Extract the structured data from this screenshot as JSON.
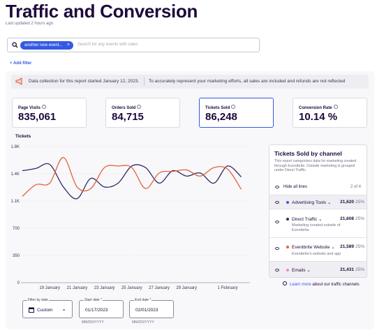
{
  "header": {
    "title": "Traffic and Conversion",
    "updated": "Last updated 2 hours ago"
  },
  "search": {
    "chip": "another new event...",
    "placeholder": "Search for any events with sales"
  },
  "add_filter": "+ Add filter",
  "banner": {
    "left": "Data collection for this report started January 12, 2023.",
    "right": "To accurately represent your marketing efforts, all sales are included and refunds are not reflected"
  },
  "metrics": [
    {
      "label": "Page Visits",
      "value": "835,061"
    },
    {
      "label": "Orders Sold",
      "value": "84,715"
    },
    {
      "label": "Tickets Sold",
      "value": "86,248",
      "selected": true
    },
    {
      "label": "Conversion Rate",
      "value": "10.14 %"
    }
  ],
  "chart_data": {
    "type": "line",
    "y_label": "Tickets",
    "categories": [
      null,
      null,
      "19 January",
      null,
      "21 January",
      null,
      "23 January",
      null,
      "25 January",
      null,
      "27 January",
      null,
      "29 January",
      null,
      null,
      "1 February",
      null
    ],
    "series": [
      {
        "color": "#2f2a66",
        "values": [
          1440,
          1470,
          1520,
          1230,
          1080,
          1340,
          1230,
          1280,
          1500,
          1480,
          1280,
          1440,
          1370,
          1410,
          1280,
          1500,
          1360
        ]
      },
      {
        "color": "#e0643a",
        "values": [
          1110,
          1260,
          1280,
          1610,
          1230,
          1210,
          1480,
          1500,
          1480,
          1210,
          1410,
          1430,
          1450,
          1370,
          1480,
          1460,
          1200
        ]
      }
    ],
    "ylim": [
      0,
      1750
    ],
    "yticks": [
      0,
      350,
      700,
      {
        "value": 1050,
        "label": "1.1K"
      },
      {
        "value": 1400,
        "label": "1.4K"
      },
      {
        "value": 1750,
        "label": "1.8K"
      }
    ],
    "grid": true
  },
  "channels_panel": {
    "title": "Tickets Sold by channel",
    "description": "This report categorizes data for marketing created through Eventbrite. Outside marketing is grouped under Direct Traffic.",
    "hide_all": "Hide all lines",
    "count": "2 of 4",
    "channels": [
      {
        "name": "Advertising Tools",
        "tickets": "21,620",
        "share": "25%",
        "color": "#3659e3",
        "selected": false
      },
      {
        "name": "Direct Traffic",
        "tickets": "21,608",
        "share": "25%",
        "note": "Marketing created outside of Eventbrite",
        "color": "#2f2a66",
        "selected": true
      },
      {
        "name": "Eventbrite Website",
        "tickets": "21,589",
        "share": "25%",
        "note": "Eventbrite's website and app",
        "color": "#e0643a",
        "selected": true
      },
      {
        "name": "Emails",
        "tickets": "21,431",
        "share": "25%",
        "color": "#f28bb8",
        "selected": false
      }
    ]
  },
  "learn_more": {
    "link": "Learn more",
    "text": "about our traffic channels"
  },
  "date_filter": {
    "filter_label": "Filter by date",
    "filter_value": "Custom",
    "start_label": "Start date *",
    "start_value": "01/17/2023",
    "end_label": "End date *",
    "end_value": "02/01/2023",
    "format_hint": "MM/DD/YYYY"
  }
}
